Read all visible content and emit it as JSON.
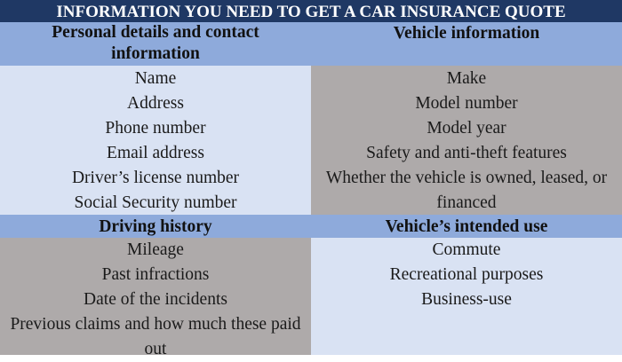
{
  "title": "INFORMATION YOU NEED TO GET A CAR INSURANCE QUOTE",
  "colors": {
    "title_bg": "#1f3864",
    "header_bg": "#8eaadb",
    "light_bg": "#d9e2f3",
    "gray_bg": "#aeaaaa"
  },
  "sections": [
    {
      "header": "Personal details and contact information",
      "items": [
        "Name",
        "Address",
        "Phone number",
        "Email address",
        "Driver’s license number",
        "Social Security number"
      ]
    },
    {
      "header": "Vehicle information",
      "items": [
        "Make",
        "Model number",
        "Model year",
        "Safety and anti-theft features",
        "Whether the vehicle is owned, leased, or financed"
      ]
    },
    {
      "header": "Driving history",
      "items": [
        "Mileage",
        "Past infractions",
        "Date of the incidents",
        "Previous claims and how much these paid out"
      ]
    },
    {
      "header": "Vehicle’s intended use",
      "items": [
        "Commute",
        "Recreational purposes",
        "Business-use"
      ]
    }
  ]
}
